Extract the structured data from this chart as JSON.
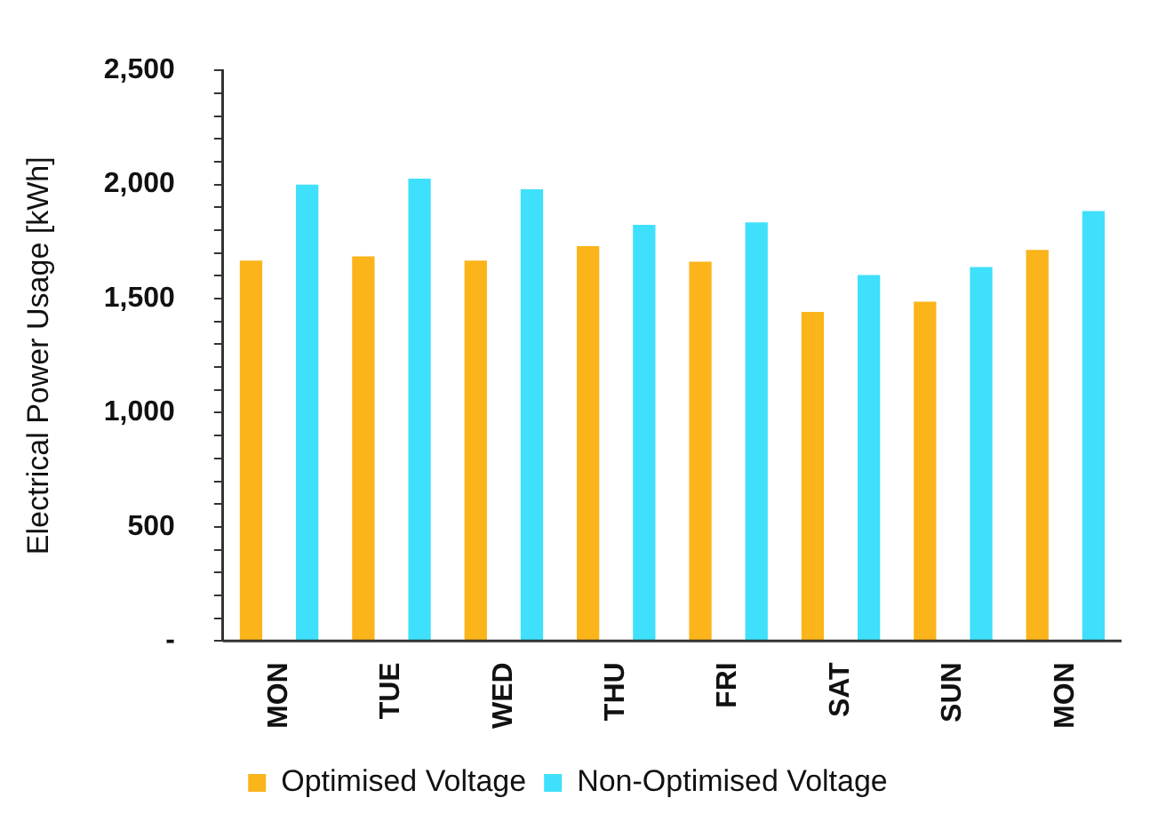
{
  "chart_data": {
    "type": "bar",
    "ylabel": "Electrical Power Usage [kWh]",
    "categories": [
      "MON",
      "TUE",
      "WED",
      "THU",
      "FRI",
      "SAT",
      "SUN",
      "MON"
    ],
    "series": [
      {
        "name": "Optimised Voltage",
        "color": "#fbb41a",
        "values": [
          1667,
          1685,
          1667,
          1730,
          1662,
          1442,
          1487,
          1713
        ]
      },
      {
        "name": "Non-Optimised Voltage",
        "color": "#3fe0fb",
        "values": [
          2000,
          2026,
          1979,
          1823,
          1834,
          1603,
          1638,
          1884
        ]
      }
    ],
    "ylim": [
      0,
      2500
    ],
    "yticks": [
      {
        "value": 0,
        "label": "-"
      },
      {
        "value": 100,
        "label": null
      },
      {
        "value": 200,
        "label": null
      },
      {
        "value": 300,
        "label": null
      },
      {
        "value": 400,
        "label": null
      },
      {
        "value": 500,
        "label": "500"
      },
      {
        "value": 600,
        "label": null
      },
      {
        "value": 700,
        "label": null
      },
      {
        "value": 800,
        "label": null
      },
      {
        "value": 900,
        "label": null
      },
      {
        "value": 1000,
        "label": "1,000"
      },
      {
        "value": 1100,
        "label": null
      },
      {
        "value": 1200,
        "label": null
      },
      {
        "value": 1300,
        "label": null
      },
      {
        "value": 1400,
        "label": null
      },
      {
        "value": 1500,
        "label": "1,500"
      },
      {
        "value": 1600,
        "label": null
      },
      {
        "value": 1700,
        "label": null
      },
      {
        "value": 1800,
        "label": null
      },
      {
        "value": 1900,
        "label": null
      },
      {
        "value": 2000,
        "label": "2,000"
      },
      {
        "value": 2100,
        "label": null
      },
      {
        "value": 2200,
        "label": null
      },
      {
        "value": 2300,
        "label": null
      },
      {
        "value": 2400,
        "label": null
      },
      {
        "value": 2500,
        "label": "2,500"
      }
    ],
    "grid": false,
    "legend": "bottom"
  }
}
